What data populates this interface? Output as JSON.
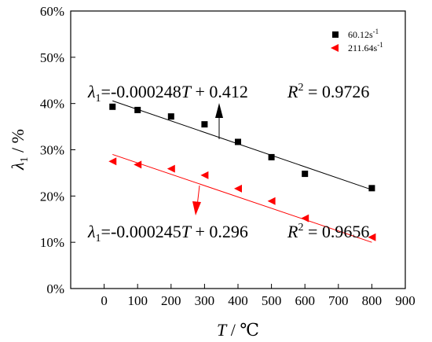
{
  "chart_data": {
    "type": "scatter",
    "xlabel_var": "T",
    "xlabel_unit": " / ℃",
    "ylabel_var": "λ",
    "ylabel_sub": "1",
    "ylabel_unit": " / %",
    "xlim": [
      -100,
      900
    ],
    "ylim": [
      0,
      60
    ],
    "xticks": [
      0,
      100,
      200,
      300,
      400,
      500,
      600,
      700,
      800,
      900
    ],
    "yticks": [
      0,
      10,
      20,
      30,
      40,
      50,
      60
    ],
    "ytick_suffix": "%",
    "grid": false,
    "legend_position": "top-right",
    "series": [
      {
        "name": "60.12s",
        "name_sup": "-1",
        "marker": "square",
        "color": "#000000",
        "x": [
          25,
          100,
          200,
          300,
          400,
          500,
          600,
          800
        ],
        "y": [
          39.3,
          38.6,
          37.2,
          35.5,
          31.7,
          28.4,
          24.8,
          21.7
        ],
        "fit": {
          "slope": -0.000248,
          "intercept": 0.412,
          "x_range": [
            25,
            800
          ]
        }
      },
      {
        "name": "211.64s",
        "name_sup": "-1",
        "marker": "triangle-left",
        "color": "#ff0000",
        "x": [
          25,
          100,
          200,
          300,
          400,
          500,
          600,
          800
        ],
        "y": [
          27.5,
          26.8,
          25.9,
          24.5,
          21.6,
          18.9,
          15.2,
          11.1
        ],
        "fit": {
          "slope": -0.000245,
          "intercept": 0.296,
          "x_range": [
            25,
            800
          ]
        }
      }
    ],
    "annotations": [
      {
        "lambda": "λ",
        "sub": "1",
        "rest": "=-0.000248",
        "var": "T",
        "tail": " + 0.412",
        "r_label": "R",
        "r_sup": "2",
        "r_value": " = 0.9726"
      },
      {
        "lambda": "λ",
        "sub": "1",
        "rest": "=-0.000245",
        "var": "T",
        "tail": " + 0.296",
        "r_label": "R",
        "r_sup": "2",
        "r_value": " = 0.9656"
      }
    ]
  }
}
